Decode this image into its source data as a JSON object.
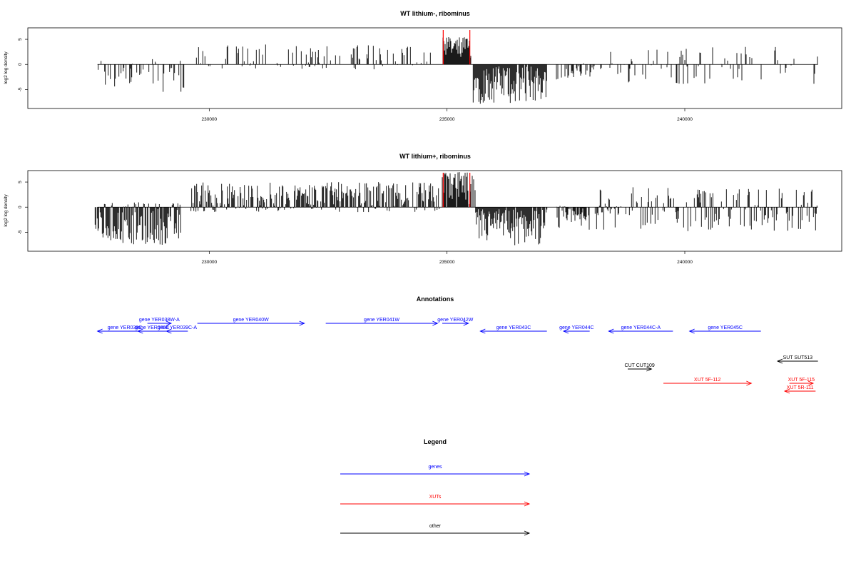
{
  "chart_data": [
    {
      "type": "bar",
      "title": "WT lithium-, ribominus",
      "ylabel": "log2 log density",
      "xlim": [
        226200,
        243300
      ],
      "ylim": [
        -8.5,
        7
      ],
      "x_ticks": [
        "230000",
        "235000",
        "240000"
      ],
      "y_ticks": [
        "5",
        "0",
        "-5"
      ],
      "marker_color": "#ff0000",
      "bar_color": "#000000",
      "markers_x": [
        234920,
        235480
      ],
      "segments": [
        {
          "x_start": 227650,
          "x_end": 229500,
          "lo": -5.5,
          "hi": 1.5,
          "density": 0.35
        },
        {
          "x_start": 229700,
          "x_end": 234700,
          "lo": -1,
          "hi": 4,
          "density": 0.3
        },
        {
          "x_start": 234900,
          "x_end": 235500,
          "lo": 0.2,
          "hi": 5.5,
          "density": 0.95
        },
        {
          "x_start": 235550,
          "x_end": 237100,
          "lo": -8.2,
          "hi": -0.3,
          "density": 0.95
        },
        {
          "x_start": 237300,
          "x_end": 238100,
          "lo": -3,
          "hi": 0.3,
          "density": 0.5
        },
        {
          "x_start": 238200,
          "x_end": 242800,
          "lo": -4,
          "hi": 3.5,
          "density": 0.22
        }
      ]
    },
    {
      "type": "bar",
      "title": "WT lithium+, ribominus",
      "ylabel": "log2 log density",
      "xlim": [
        226200,
        243300
      ],
      "ylim": [
        -8.5,
        7
      ],
      "x_ticks": [
        "230000",
        "235000",
        "240000"
      ],
      "y_ticks": [
        "5",
        "0",
        "-5"
      ],
      "marker_color": "#ff0000",
      "bar_color": "#000000",
      "markers_x": [
        234920,
        235480
      ],
      "segments": [
        {
          "x_start": 227600,
          "x_end": 229400,
          "lo": -7.5,
          "hi": 1,
          "density": 0.9
        },
        {
          "x_start": 229600,
          "x_end": 234850,
          "lo": -1,
          "hi": 5,
          "density": 0.75
        },
        {
          "x_start": 234900,
          "x_end": 235600,
          "lo": 0.5,
          "hi": 7,
          "density": 0.95
        },
        {
          "x_start": 235600,
          "x_end": 237100,
          "lo": -8,
          "hi": -0.3,
          "density": 0.95
        },
        {
          "x_start": 237300,
          "x_end": 238000,
          "lo": -5,
          "hi": 0.3,
          "density": 0.7
        },
        {
          "x_start": 238100,
          "x_end": 242800,
          "lo": -5,
          "hi": 4,
          "density": 0.45
        }
      ]
    }
  ],
  "annotations": {
    "title": "Annotations",
    "features": [
      {
        "label": "gene YER038C",
        "color": "#0000ff",
        "x_start": 227650,
        "x_end": 228800,
        "strand": "-",
        "row": 0
      },
      {
        "label": "gene YER038W-A",
        "color": "#0000ff",
        "x_start": 228700,
        "x_end": 229200,
        "strand": "+",
        "row": 1
      },
      {
        "label": "gene YER039C",
        "color": "#0000ff",
        "x_start": 228500,
        "x_end": 229100,
        "strand": "-",
        "row": 0
      },
      {
        "label": "gene YER039C-A",
        "color": "#0000ff",
        "x_start": 229100,
        "x_end": 229550,
        "strand": "-",
        "row": 0
      },
      {
        "label": "gene YER040W",
        "color": "#0000ff",
        "x_start": 229750,
        "x_end": 232000,
        "strand": "+",
        "row": 1
      },
      {
        "label": "gene YER041W",
        "color": "#0000ff",
        "x_start": 232450,
        "x_end": 234800,
        "strand": "+",
        "row": 1
      },
      {
        "label": "gene YER042W",
        "color": "#0000ff",
        "x_start": 234900,
        "x_end": 235450,
        "strand": "+",
        "row": 1
      },
      {
        "label": "gene YER043C",
        "color": "#0000ff",
        "x_start": 235700,
        "x_end": 237100,
        "strand": "-",
        "row": 0
      },
      {
        "label": "gene YER044C",
        "color": "#0000ff",
        "x_start": 237450,
        "x_end": 238000,
        "strand": "-",
        "row": 0
      },
      {
        "label": "gene YER044C-A",
        "color": "#0000ff",
        "x_start": 238400,
        "x_end": 239750,
        "strand": "-",
        "row": 0
      },
      {
        "label": "gene YER045C",
        "color": "#0000ff",
        "x_start": 240100,
        "x_end": 241600,
        "strand": "-",
        "row": 0
      },
      {
        "label": "SUT SUT513",
        "color": "#000000",
        "x_start": 241950,
        "x_end": 242800,
        "strand": "-",
        "row": 2
      },
      {
        "label": "CUT CUT109",
        "color": "#000000",
        "x_start": 238800,
        "x_end": 239300,
        "strand": "+",
        "row": 3
      },
      {
        "label": "XUT 5F-112",
        "color": "#ff0000",
        "x_start": 239550,
        "x_end": 241400,
        "strand": "+",
        "row": 4
      },
      {
        "label": "XUT 5F-115",
        "color": "#ff0000",
        "x_start": 242200,
        "x_end": 242700,
        "strand": "+",
        "row": 4
      },
      {
        "label": "XUT 5R-111",
        "color": "#ff0000",
        "x_start": 242100,
        "x_end": 242750,
        "strand": "-",
        "row": 5
      }
    ]
  },
  "legend": {
    "title": "Legend",
    "items": [
      {
        "label": "genes",
        "color": "#0000ff"
      },
      {
        "label": "XUTs",
        "color": "#ff0000"
      },
      {
        "label": "other",
        "color": "#000000"
      }
    ]
  }
}
